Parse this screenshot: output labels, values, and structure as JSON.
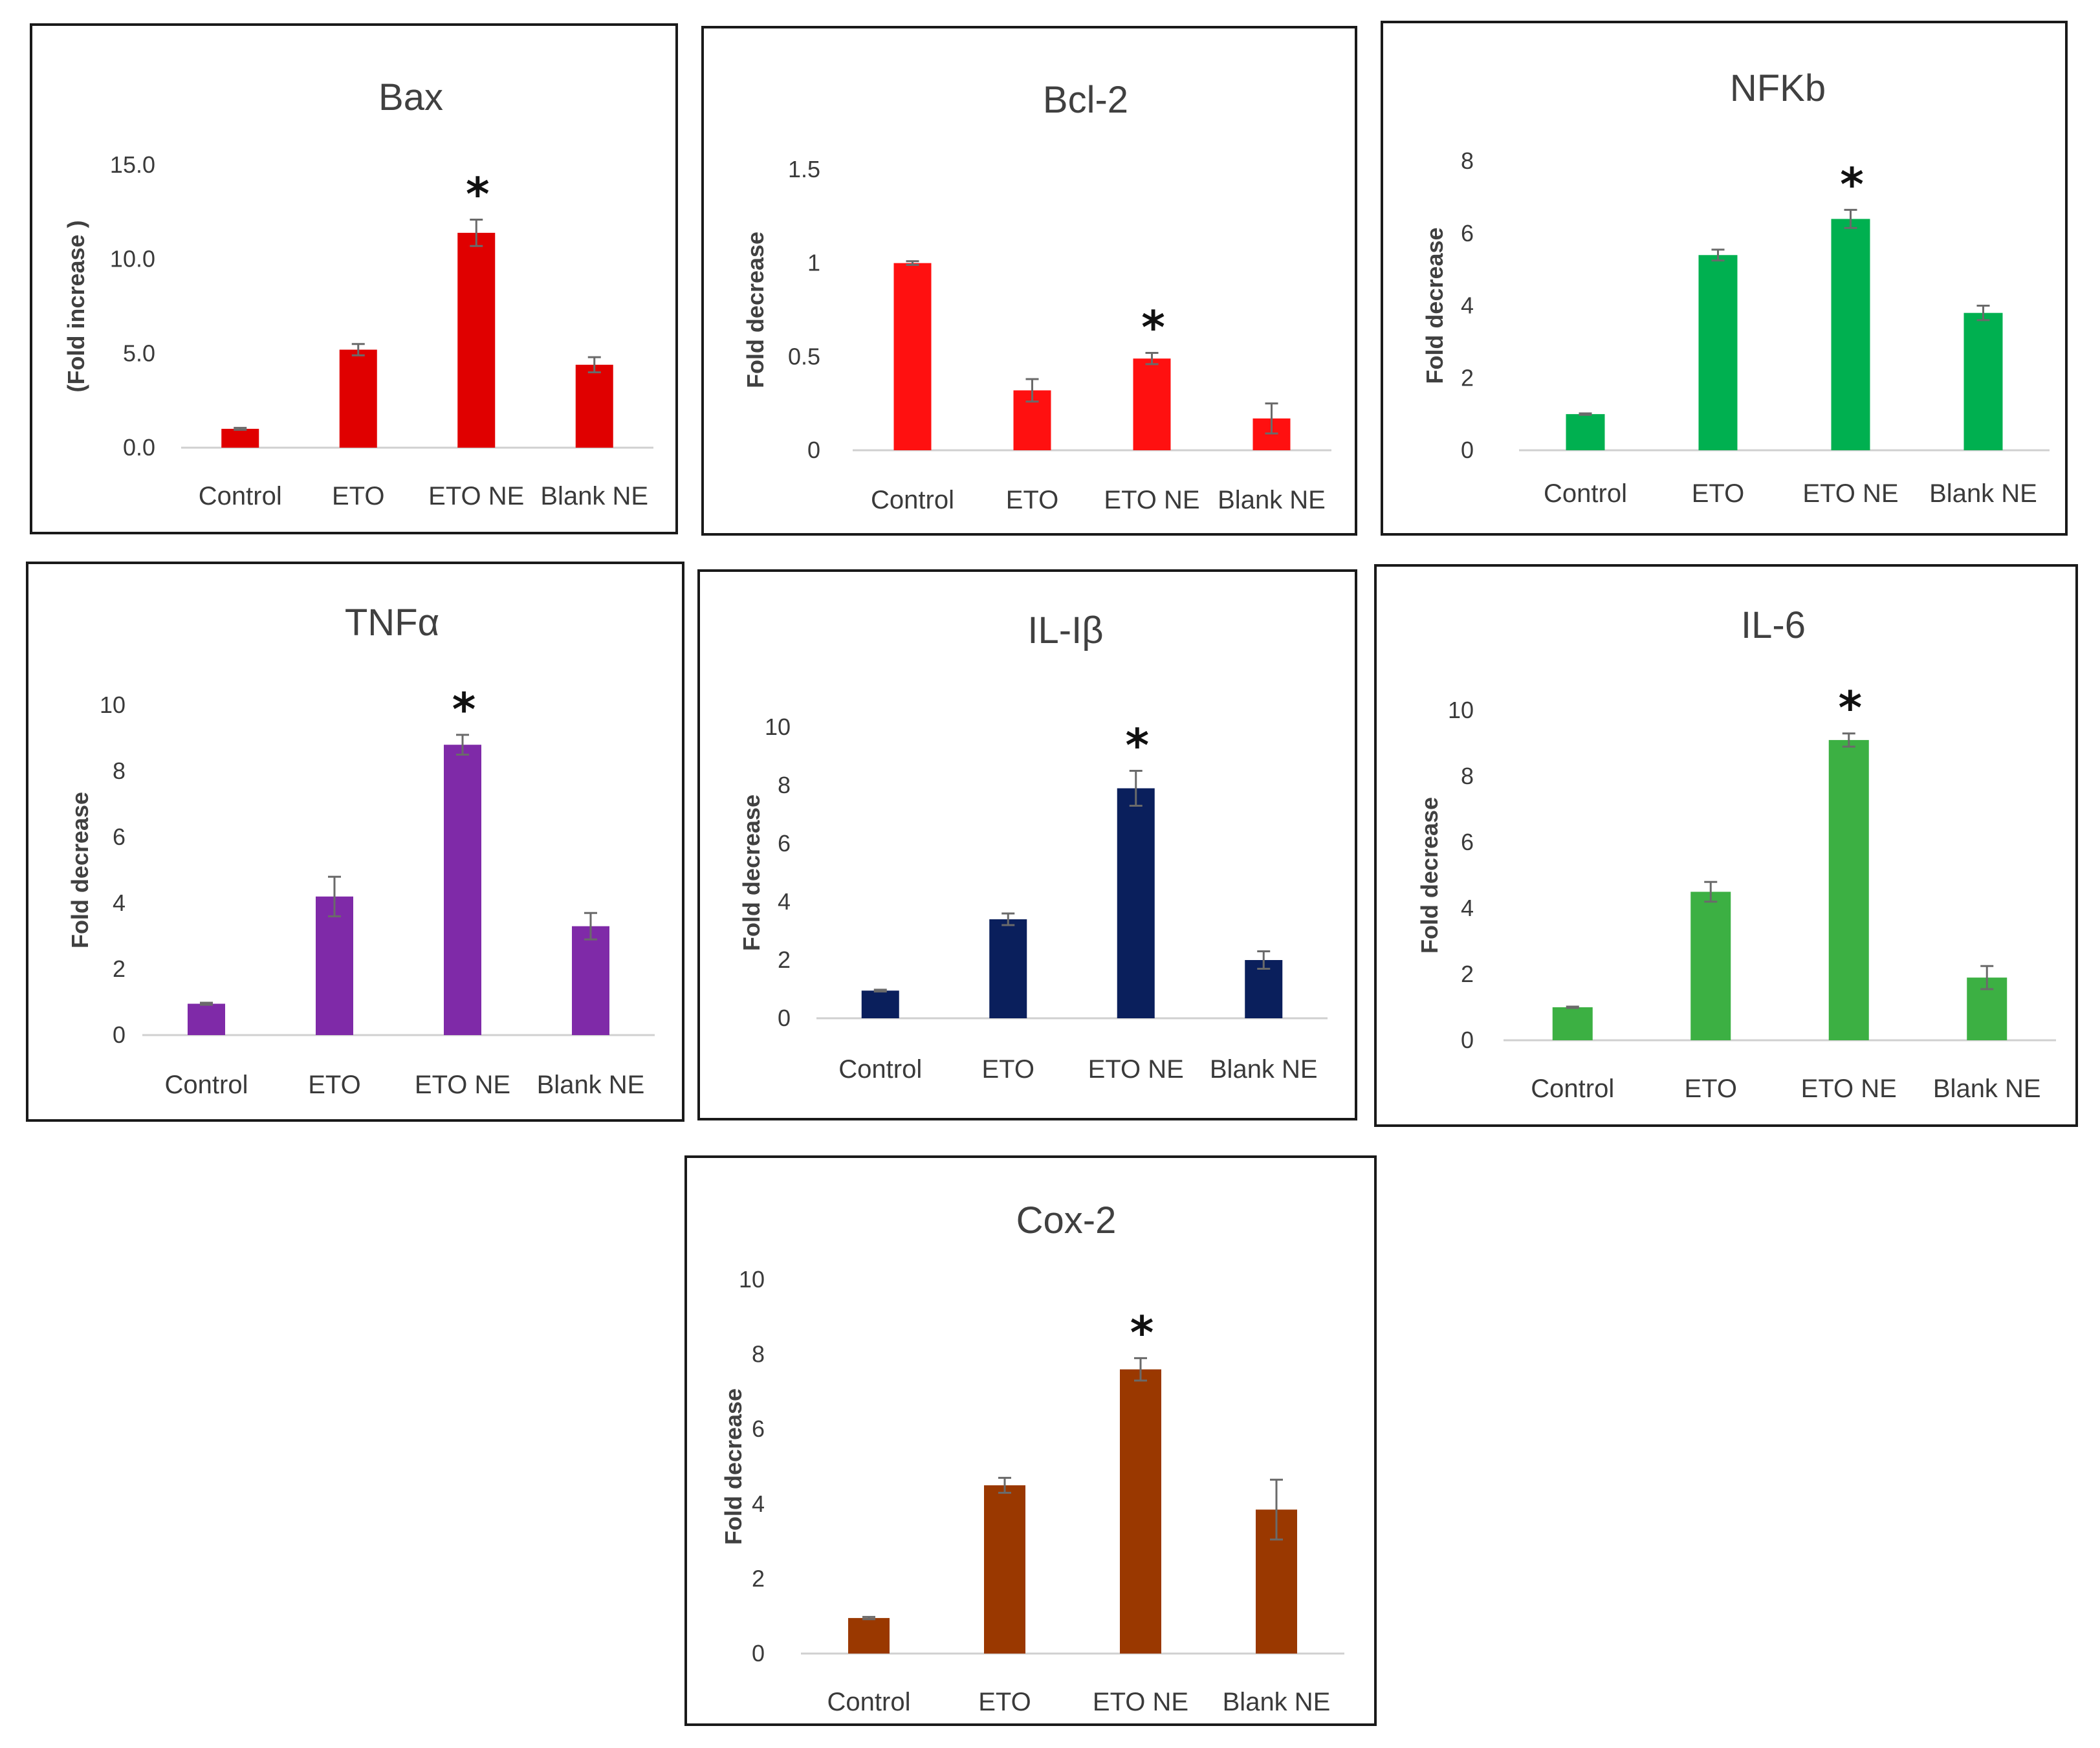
{
  "chart_data": [
    {
      "id": "bax",
      "type": "bar",
      "title": "Bax",
      "ylabel": "(Fold increase )",
      "ylabel_bold": false,
      "xlabel": "",
      "categories": [
        "Control",
        "ETO",
        "ETO NE",
        "Blank NE"
      ],
      "values": [
        1.0,
        5.2,
        11.4,
        4.4
      ],
      "errors": [
        0.05,
        0.3,
        0.7,
        0.4
      ],
      "ylim": [
        0,
        15
      ],
      "yticks": [
        "0.0",
        "5.0",
        "10.0",
        "15.0"
      ],
      "ytick_values": [
        0,
        5,
        10,
        15
      ],
      "significance": [
        "",
        "",
        "*",
        ""
      ],
      "color": "#e00000"
    },
    {
      "id": "bcl2",
      "type": "bar",
      "title": "Bcl-2",
      "ylabel": "Fold decrease",
      "ylabel_bold": true,
      "xlabel": "",
      "categories": [
        "Control",
        "ETO",
        "ETO NE",
        "Blank NE"
      ],
      "values": [
        1.0,
        0.32,
        0.49,
        0.17
      ],
      "errors": [
        0.01,
        0.06,
        0.03,
        0.08
      ],
      "ylim": [
        0,
        1.5
      ],
      "yticks": [
        "0",
        "0.5",
        "1",
        "1.5"
      ],
      "ytick_values": [
        0,
        0.5,
        1,
        1.5
      ],
      "significance": [
        "",
        "",
        "*",
        ""
      ],
      "color": "#ff1010"
    },
    {
      "id": "nfkb",
      "type": "bar",
      "title": "NFKb",
      "ylabel": "Fold decrease",
      "ylabel_bold": true,
      "xlabel": "",
      "categories": [
        "Control",
        "ETO",
        "ETO NE",
        "Blank NE"
      ],
      "values": [
        1.0,
        5.4,
        6.4,
        3.8
      ],
      "errors": [
        0.02,
        0.15,
        0.25,
        0.2
      ],
      "ylim": [
        0,
        8
      ],
      "yticks": [
        "0",
        "2",
        "4",
        "6",
        "8"
      ],
      "ytick_values": [
        0,
        2,
        4,
        6,
        8
      ],
      "significance": [
        "",
        "",
        "*",
        ""
      ],
      "color": "#00b050"
    },
    {
      "id": "tnfa",
      "type": "bar",
      "title": "TNFα",
      "ylabel": "Fold decrease",
      "ylabel_bold": true,
      "xlabel": "",
      "categories": [
        "Control",
        "ETO",
        "ETO NE",
        "Blank NE"
      ],
      "values": [
        0.95,
        4.2,
        8.8,
        3.3
      ],
      "errors": [
        0.03,
        0.6,
        0.3,
        0.4
      ],
      "ylim": [
        0,
        10
      ],
      "yticks": [
        "0",
        "2",
        "4",
        "6",
        "8",
        "10"
      ],
      "ytick_values": [
        0,
        2,
        4,
        6,
        8,
        10
      ],
      "significance": [
        "",
        "",
        "*",
        ""
      ],
      "color": "#7f2aa8"
    },
    {
      "id": "il1b",
      "type": "bar",
      "title": "IL-Iβ",
      "ylabel": "Fold decrease",
      "ylabel_bold": false,
      "xlabel": "",
      "categories": [
        "Control",
        "ETO",
        "ETO NE",
        "Blank NE"
      ],
      "values": [
        0.95,
        3.4,
        7.9,
        2.0
      ],
      "errors": [
        0.03,
        0.2,
        0.6,
        0.3
      ],
      "ylim": [
        0,
        10
      ],
      "yticks": [
        "0",
        "2",
        "4",
        "6",
        "8",
        "10"
      ],
      "ytick_values": [
        0,
        2,
        4,
        6,
        8,
        10
      ],
      "significance": [
        "",
        "",
        "*",
        ""
      ],
      "color": "#0a1f5c"
    },
    {
      "id": "il6",
      "type": "bar",
      "title": "IL-6",
      "ylabel": "Fold decrease",
      "ylabel_bold": true,
      "xlabel": "",
      "categories": [
        "Control",
        "ETO",
        "ETO NE",
        "Blank NE"
      ],
      "values": [
        1.0,
        4.5,
        9.1,
        1.9
      ],
      "errors": [
        0.02,
        0.3,
        0.2,
        0.35
      ],
      "ylim": [
        0,
        10
      ],
      "yticks": [
        "0",
        "2",
        "4",
        "6",
        "8",
        "10"
      ],
      "ytick_values": [
        0,
        2,
        4,
        6,
        8,
        10
      ],
      "significance": [
        "",
        "",
        "*",
        ""
      ],
      "color": "#3cb043"
    },
    {
      "id": "cox2",
      "type": "bar",
      "title": "Cox-2",
      "ylabel": "Fold decrease",
      "ylabel_bold": true,
      "xlabel": "",
      "categories": [
        "Control",
        "ETO",
        "ETO NE",
        "Blank NE"
      ],
      "values": [
        0.95,
        4.5,
        7.6,
        3.85
      ],
      "errors": [
        0.03,
        0.2,
        0.3,
        0.8
      ],
      "ylim": [
        0,
        10
      ],
      "yticks": [
        "0",
        "2",
        "4",
        "6",
        "8",
        "10"
      ],
      "ytick_values": [
        0,
        2,
        4,
        6,
        8,
        10
      ],
      "significance": [
        "",
        "",
        "*",
        ""
      ],
      "color": "#9a3800"
    }
  ]
}
